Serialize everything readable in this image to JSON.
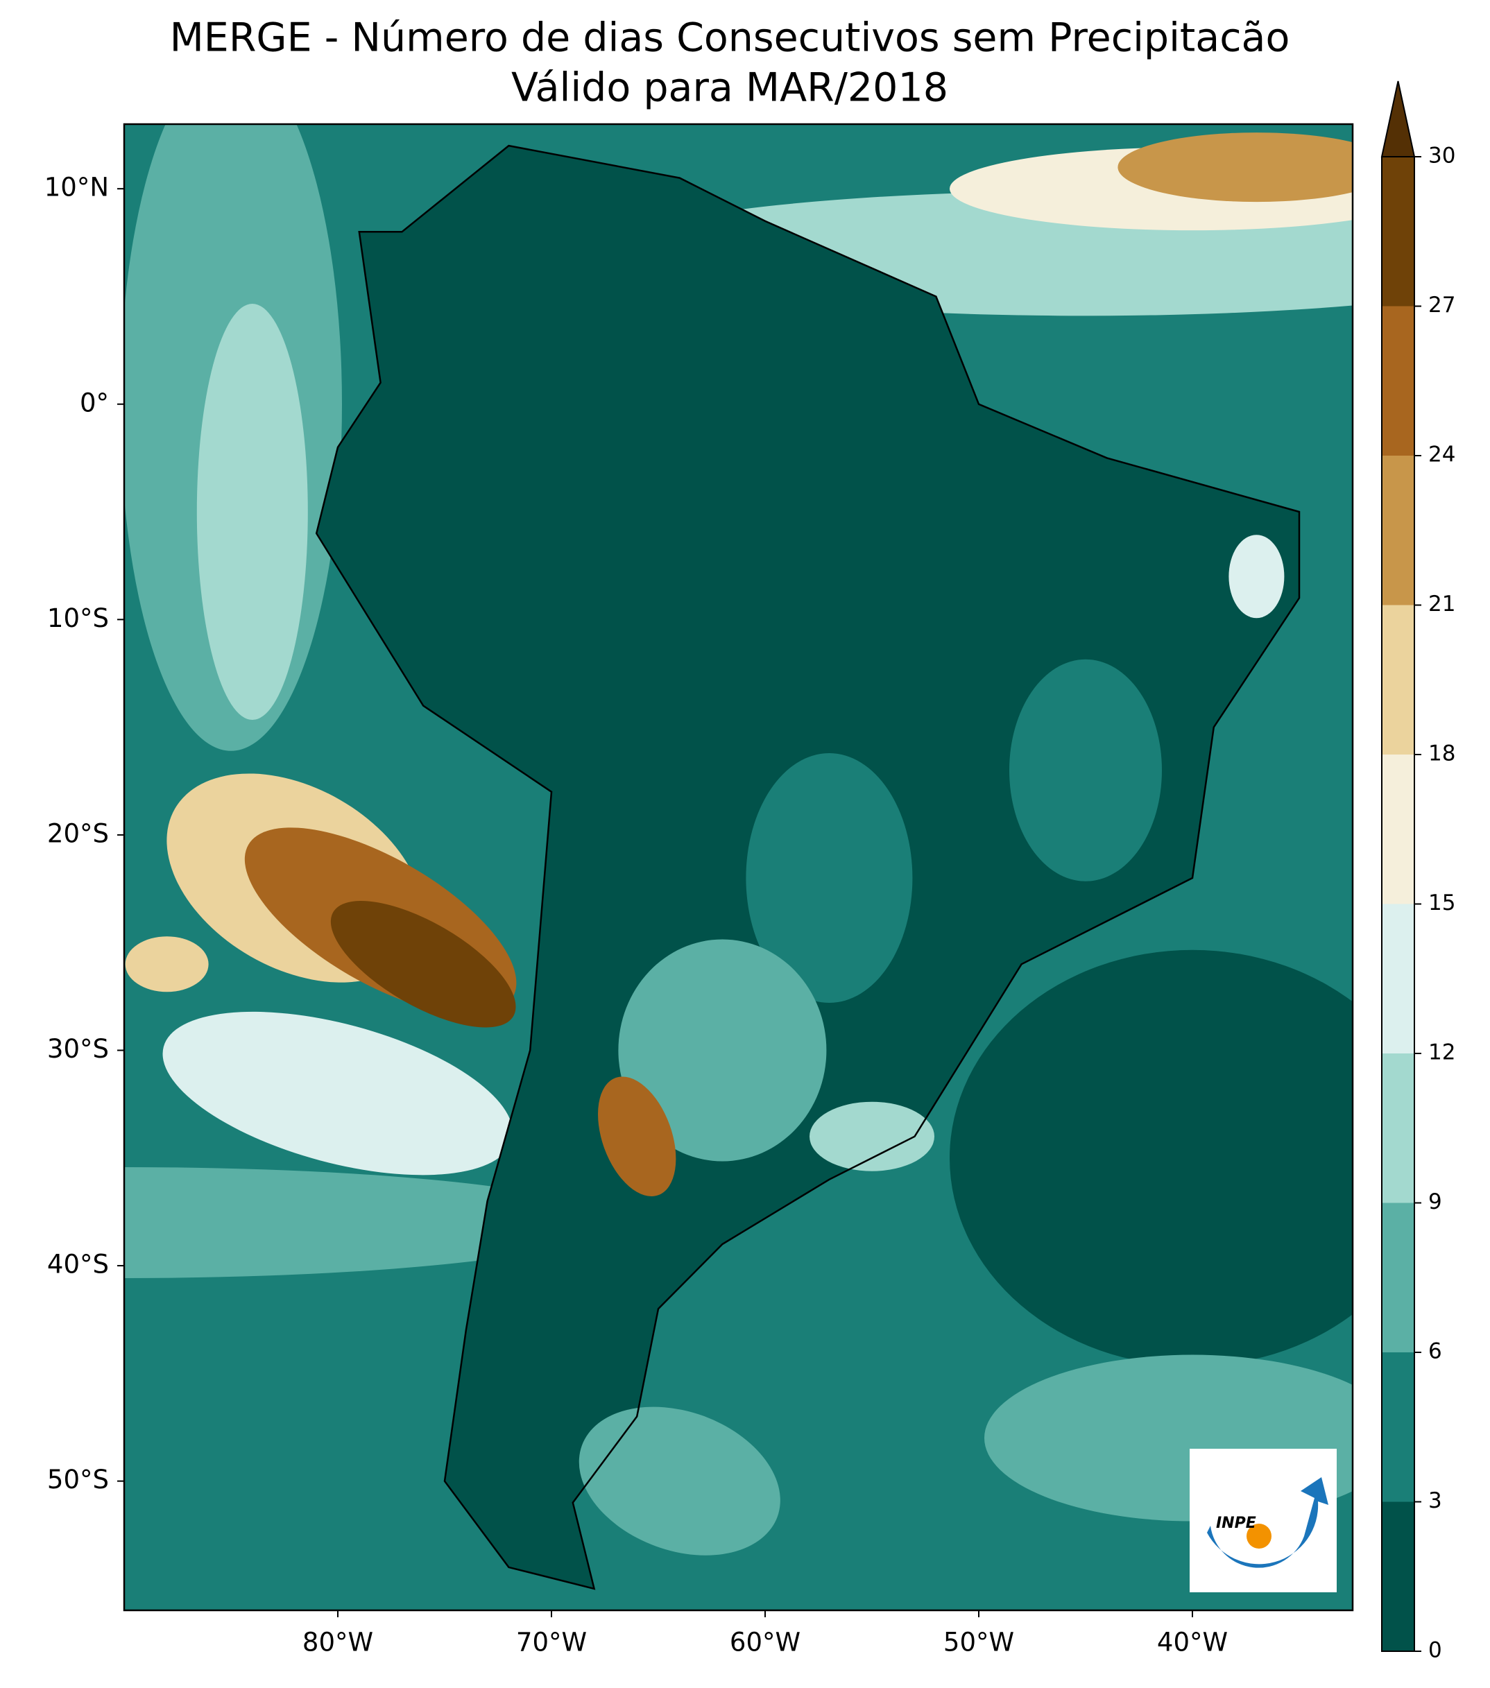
{
  "chart_data": {
    "type": "map",
    "title": "MERGE - Número de dias Consecutivos sem Precipitacão",
    "subtitle": "Válido para MAR/2018",
    "xlim": [
      -90,
      -32.5
    ],
    "ylim": [
      -56,
      13
    ],
    "xticks": [
      {
        "value": -80,
        "label": "80°W"
      },
      {
        "value": -70,
        "label": "70°W"
      },
      {
        "value": -60,
        "label": "60°W"
      },
      {
        "value": -50,
        "label": "50°W"
      },
      {
        "value": -40,
        "label": "40°W"
      }
    ],
    "yticks": [
      {
        "value": 10,
        "label": "10°N"
      },
      {
        "value": 0,
        "label": "0°"
      },
      {
        "value": -10,
        "label": "10°S"
      },
      {
        "value": -20,
        "label": "20°S"
      },
      {
        "value": -30,
        "label": "30°S"
      },
      {
        "value": -40,
        "label": "40°S"
      },
      {
        "value": -50,
        "label": "50°S"
      }
    ],
    "colorbar": {
      "levels": [
        0,
        3,
        6,
        9,
        12,
        15,
        18,
        21,
        24,
        27,
        30
      ],
      "colors": [
        "#01524a",
        "#1a7f77",
        "#5bb0a5",
        "#a3d9cf",
        "#dcf0ee",
        "#f5efdb",
        "#ebd39d",
        "#c8964a",
        "#a8661f",
        "#6f4208"
      ],
      "extend_color": "#543005"
    },
    "logo": "INPE"
  }
}
